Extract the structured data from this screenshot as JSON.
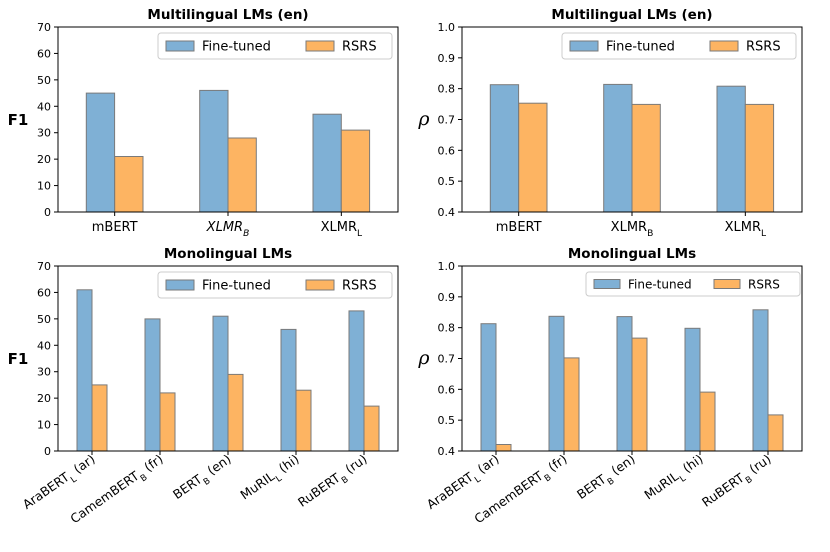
{
  "colors": {
    "fine_tuned": "#7fb0d5",
    "rsrs": "#fdb462",
    "bar_edge": "#7a7a7a"
  },
  "chart_data": [
    {
      "type": "bar",
      "title": "Multilingual LMs (en)",
      "ylabel": "F1",
      "ylim": [
        0,
        70
      ],
      "yticks": [
        "0",
        "10",
        "20",
        "30",
        "40",
        "50",
        "60",
        "70"
      ],
      "categories": [
        {
          "base": "mBERT",
          "sub": "",
          "suffix": "",
          "italic": false
        },
        {
          "base": "XLMR",
          "sub": "B",
          "suffix": "",
          "italic": true
        },
        {
          "base": "XLMR",
          "sub": "L",
          "suffix": "",
          "italic": false
        }
      ],
      "legend": [
        "Fine-tuned",
        "RSRS"
      ],
      "series": [
        {
          "name": "Fine-tuned",
          "values": [
            45,
            46,
            37
          ]
        },
        {
          "name": "RSRS",
          "values": [
            21,
            28,
            31
          ]
        }
      ]
    },
    {
      "type": "bar",
      "title": "Multilingual LMs (en)",
      "ylabel": "ρ",
      "ylim": [
        0.4,
        1.0
      ],
      "yticks": [
        "0.4",
        "0.5",
        "0.6",
        "0.7",
        "0.8",
        "0.9",
        "1.0"
      ],
      "categories": [
        {
          "base": "mBERT",
          "sub": "",
          "suffix": "",
          "italic": false
        },
        {
          "base": "XLMR",
          "sub": "B",
          "suffix": "",
          "italic": false
        },
        {
          "base": "XLMR",
          "sub": "L",
          "suffix": "",
          "italic": false
        }
      ],
      "legend": [
        "Fine-tuned",
        "RSRS"
      ],
      "series": [
        {
          "name": "Fine-tuned",
          "values": [
            0.813,
            0.814,
            0.808
          ]
        },
        {
          "name": "RSRS",
          "values": [
            0.753,
            0.749,
            0.749
          ]
        }
      ]
    },
    {
      "type": "bar",
      "title": "Monolingual LMs",
      "ylabel": "F1",
      "ylim": [
        0,
        70
      ],
      "yticks": [
        "0",
        "10",
        "20",
        "30",
        "40",
        "50",
        "60",
        "70"
      ],
      "categories": [
        {
          "base": "AraBERT",
          "sub": "L",
          "suffix": " (ar)",
          "italic": false
        },
        {
          "base": "CamemBERT",
          "sub": "B",
          "suffix": " (fr)",
          "italic": false
        },
        {
          "base": "BERT",
          "sub": "B",
          "suffix": " (en)",
          "italic": false
        },
        {
          "base": "MuRIL",
          "sub": "L",
          "suffix": " (hi)",
          "italic": false
        },
        {
          "base": "RuBERT",
          "sub": "B",
          "suffix": " (ru)",
          "italic": false
        }
      ],
      "legend": [
        "Fine-tuned",
        "RSRS"
      ],
      "series": [
        {
          "name": "Fine-tuned",
          "values": [
            61,
            50,
            51,
            46,
            53
          ]
        },
        {
          "name": "RSRS",
          "values": [
            25,
            22,
            29,
            23,
            17
          ]
        }
      ]
    },
    {
      "type": "bar",
      "title": "Monolingual LMs",
      "ylabel": "ρ",
      "ylim": [
        0.4,
        1.0
      ],
      "yticks": [
        "0.4",
        "0.5",
        "0.6",
        "0.7",
        "0.8",
        "0.9",
        "1.0"
      ],
      "categories": [
        {
          "base": "AraBERT",
          "sub": "L",
          "suffix": " (ar)",
          "italic": false
        },
        {
          "base": "CamemBERT",
          "sub": "B",
          "suffix": " (fr)",
          "italic": false
        },
        {
          "base": "BERT",
          "sub": "B",
          "suffix": " (en)",
          "italic": false
        },
        {
          "base": "MuRIL",
          "sub": "L",
          "suffix": " (hi)",
          "italic": false
        },
        {
          "base": "RuBERT",
          "sub": "B",
          "suffix": " (ru)",
          "italic": false
        }
      ],
      "legend": [
        "Fine-tuned",
        "RSRS"
      ],
      "series": [
        {
          "name": "Fine-tuned",
          "values": [
            0.813,
            0.837,
            0.836,
            0.798,
            0.858
          ]
        },
        {
          "name": "RSRS",
          "values": [
            0.421,
            0.702,
            0.766,
            0.591,
            0.517
          ]
        }
      ]
    }
  ]
}
